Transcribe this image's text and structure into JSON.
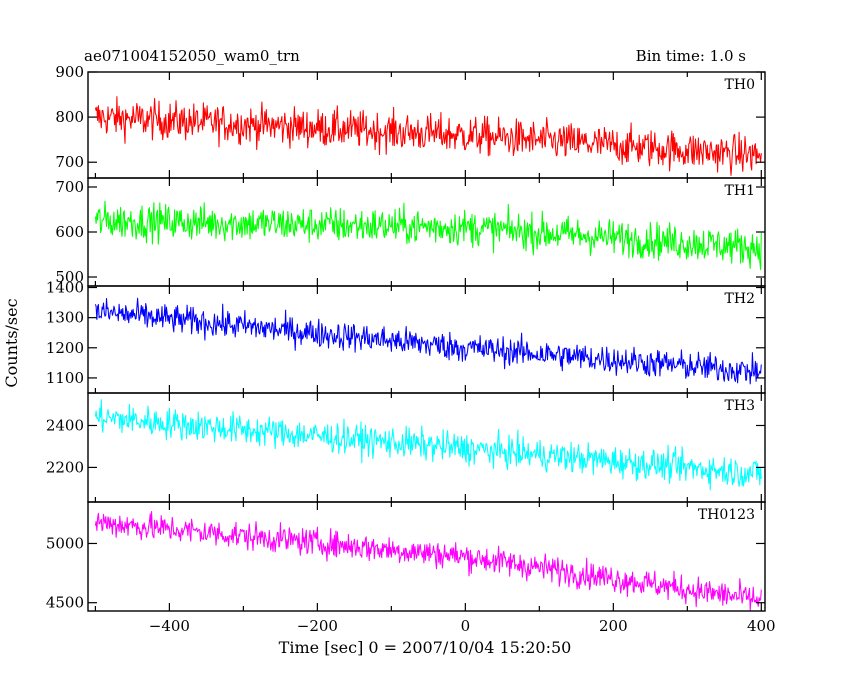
{
  "chart_data": {
    "type": "line",
    "title": "ae071004152050_wam0_trn",
    "bin_time_label": "Bin time: 1.0 s",
    "xlabel": "Time [sec] 0 = 2007/10/04 15:20:50",
    "ylabel": "Counts/sec",
    "xlim": [
      -510,
      405
    ],
    "xticks": [
      -400,
      -200,
      0,
      200,
      400
    ],
    "grid": false,
    "panels": [
      {
        "name": "TH0",
        "color": "#ff0000",
        "ylim": [
          665,
          900
        ],
        "yticks": [
          700,
          800,
          900
        ],
        "trend": [
          {
            "x": -500,
            "y": 800
          },
          {
            "x": 0,
            "y": 760
          },
          {
            "x": 400,
            "y": 715
          }
        ],
        "noise_amplitude": 40
      },
      {
        "name": "TH1",
        "color": "#00ff00",
        "ylim": [
          480,
          720
        ],
        "yticks": [
          500,
          600,
          700
        ],
        "trend": [
          {
            "x": -500,
            "y": 625
          },
          {
            "x": 0,
            "y": 610
          },
          {
            "x": 400,
            "y": 565
          }
        ],
        "noise_amplitude": 38
      },
      {
        "name": "TH2",
        "color": "#0000ff",
        "ylim": [
          1050,
          1405
        ],
        "yticks": [
          1100,
          1200,
          1300,
          1400
        ],
        "trend": [
          {
            "x": -500,
            "y": 1320
          },
          {
            "x": 0,
            "y": 1200
          },
          {
            "x": 400,
            "y": 1120
          }
        ],
        "noise_amplitude": 45
      },
      {
        "name": "TH3",
        "color": "#00ffff",
        "ylim": [
          2035,
          2555
        ],
        "yticks": [
          2200,
          2400
        ],
        "trend": [
          {
            "x": -500,
            "y": 2440
          },
          {
            "x": 0,
            "y": 2290
          },
          {
            "x": 400,
            "y": 2170
          }
        ],
        "noise_amplitude": 70
      },
      {
        "name": "TH0123",
        "color": "#ff00ff",
        "ylim": [
          4430,
          5350
        ],
        "yticks": [
          4500,
          5000
        ],
        "trend": [
          {
            "x": -500,
            "y": 5180
          },
          {
            "x": 0,
            "y": 4890
          },
          {
            "x": 400,
            "y": 4520
          }
        ],
        "noise_amplitude": 110
      }
    ]
  }
}
